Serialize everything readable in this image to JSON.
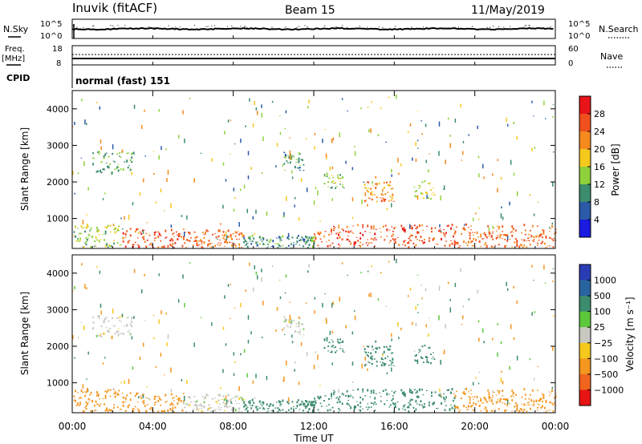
{
  "header": {
    "station": "Inuvik (fitACF)",
    "beam": "Beam 15",
    "date": "11/May/2019"
  },
  "nsky_panel": {
    "left_label": "N.Sky",
    "right_label": "N.Search",
    "left_ticks": [
      "10^5",
      "10^0"
    ],
    "right_ticks": [
      "10^5",
      "10^0"
    ]
  },
  "freq_panel": {
    "left_label_1": "Freq.",
    "left_label_2": "[MHz]",
    "right_label": "Nave",
    "left_ticks": [
      "18",
      "8"
    ],
    "right_ticks": [
      "60",
      "0"
    ],
    "cpid_label": "CPID",
    "cpid_value": "normal (fast) 151"
  },
  "power_panel": {
    "ylabel": "Slant Range [km]",
    "yticks": [
      "4000",
      "3000",
      "2000",
      "1000"
    ],
    "colorbar_label": "Power [dB]",
    "colorbar_ticks": [
      "28",
      "24",
      "20",
      "16",
      "12",
      "8",
      "4"
    ],
    "colorbar_colors": [
      "#e8141a",
      "#f0501e",
      "#f58a1e",
      "#f5c81e",
      "#8fd13a",
      "#3c8c6e",
      "#2a5aa8",
      "#1a1ae0"
    ]
  },
  "velocity_panel": {
    "ylabel": "Slant Range [km]",
    "yticks": [
      "4000",
      "3000",
      "2000",
      "1000"
    ],
    "colorbar_label": "Velocity [m s⁻¹]",
    "colorbar_ticks": [
      "1000",
      "500",
      "100",
      "25",
      "−25",
      "−100",
      "−500",
      "−1000"
    ],
    "colorbar_colors": [
      "#2a3cb4",
      "#2a64a0",
      "#3c8c6e",
      "#5cc83a",
      "#c8c8c0",
      "#f5c81e",
      "#f5961e",
      "#f0641e",
      "#e81414"
    ]
  },
  "xaxis": {
    "label": "Time UT",
    "ticks": [
      "00:00",
      "04:00",
      "08:00",
      "12:00",
      "16:00",
      "20:00",
      "00:00"
    ]
  },
  "chart_data": {
    "type": "heatmap",
    "title": "Inuvik (fitACF)",
    "subtitle": "Beam 15",
    "date": "11/May/2019",
    "xlabel": "Time UT",
    "ylabel": "Slant Range [km]",
    "xlim": [
      "00:00",
      "24:00"
    ],
    "ylim": [
      180,
      4500
    ],
    "scatter_regions": [
      {
        "t0": 0.0,
        "t1": 2.5,
        "r0": 180,
        "r1": 800,
        "power": 14,
        "velocity": -100
      },
      {
        "t0": 2.5,
        "t1": 5.5,
        "r0": 180,
        "r1": 700,
        "power": 26,
        "velocity": -100
      },
      {
        "t0": 5.5,
        "t1": 8.5,
        "r0": 180,
        "r1": 650,
        "power": 24,
        "velocity": 0
      },
      {
        "t0": 8.5,
        "t1": 12.0,
        "r0": 180,
        "r1": 500,
        "power": 10,
        "velocity": 100
      },
      {
        "t0": 12.0,
        "t1": 19.0,
        "r0": 180,
        "r1": 800,
        "power": 26,
        "velocity": 100
      },
      {
        "t0": 19.0,
        "t1": 24.0,
        "r0": 180,
        "r1": 800,
        "power": 24,
        "velocity": -100
      },
      {
        "t0": 1.0,
        "t1": 3.0,
        "r0": 2200,
        "r1": 2800,
        "power": 12,
        "velocity": 0
      },
      {
        "t0": 10.5,
        "t1": 11.5,
        "r0": 2300,
        "r1": 2800,
        "power": 10,
        "velocity": 0
      },
      {
        "t0": 12.5,
        "t1": 13.5,
        "r0": 1800,
        "r1": 2200,
        "power": 14,
        "velocity": 100
      },
      {
        "t0": 14.5,
        "t1": 16.0,
        "r0": 1400,
        "r1": 2100,
        "power": 22,
        "velocity": 100
      },
      {
        "t0": 17.0,
        "t1": 18.0,
        "r0": 1500,
        "r1": 2000,
        "power": 16,
        "velocity": 100
      }
    ]
  }
}
